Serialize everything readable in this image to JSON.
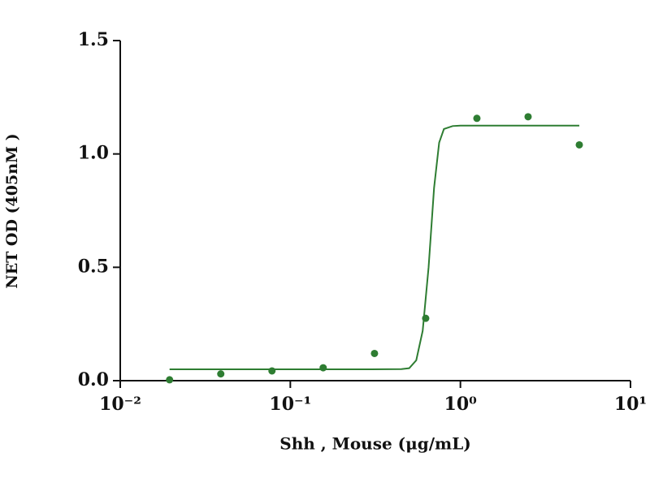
{
  "chart_data": {
    "type": "scatter",
    "xlabel": "Shh , Mouse (μg/mL)",
    "ylabel": "NET OD (405nM )",
    "xscale": "log",
    "xlim": [
      0.01,
      10
    ],
    "xticks": [
      {
        "value": 0.01,
        "label": "10⁻²"
      },
      {
        "value": 0.1,
        "label": "10⁻¹"
      },
      {
        "value": 1,
        "label": "10⁰"
      },
      {
        "value": 10,
        "label": "10¹"
      }
    ],
    "ylim": [
      0,
      1.5
    ],
    "yticks": [
      {
        "value": 0,
        "label": "0.0"
      },
      {
        "value": 0.5,
        "label": "0.5"
      },
      {
        "value": 1,
        "label": "1.0"
      },
      {
        "value": 1.5,
        "label": "1.5"
      }
    ],
    "grid": false,
    "series": [
      {
        "mode": "markers",
        "color": "#2e7d32",
        "x": [
          0.0195,
          0.039,
          0.078,
          0.156,
          0.3125,
          0.625,
          1.25,
          2.5,
          5
        ],
        "values": [
          0.004,
          0.03,
          0.043,
          0.057,
          0.12,
          0.275,
          1.157,
          1.164,
          1.04
        ]
      },
      {
        "mode": "line",
        "color": "#2e7d32",
        "x": [
          0.0195,
          0.1,
          0.3,
          0.45,
          0.5,
          0.55,
          0.6,
          0.65,
          0.7,
          0.75,
          0.8,
          0.9,
          1,
          5
        ],
        "values": [
          0.05,
          0.05,
          0.05,
          0.051,
          0.055,
          0.09,
          0.22,
          0.5,
          0.85,
          1.05,
          1.11,
          1.123,
          1.125,
          1.125
        ]
      }
    ]
  }
}
